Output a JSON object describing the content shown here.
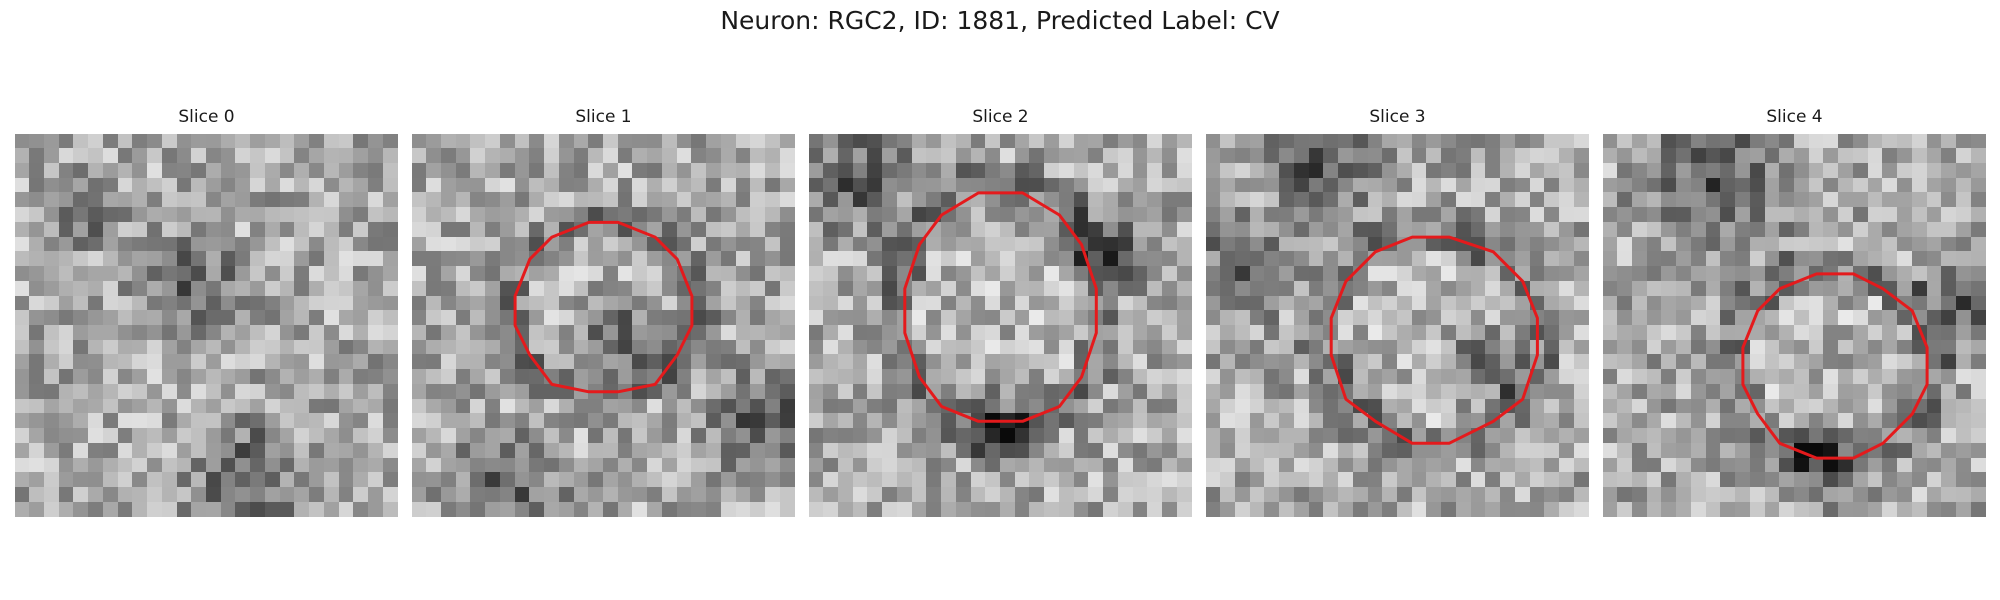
{
  "figure": {
    "title": "Neuron: RGC2, ID: 1881, Predicted Label: CV"
  },
  "contour_color": "#e41a1c",
  "slices": [
    {
      "label": "Slice 0",
      "seed": 11,
      "has_contour": false,
      "center": [
        0.5,
        0.5
      ],
      "radius": [
        0.0,
        0.0
      ],
      "dark_regions": [
        [
          0.2,
          0.2,
          0.12
        ],
        [
          0.6,
          0.9,
          0.22
        ],
        [
          0.45,
          0.4,
          0.2
        ]
      ]
    },
    {
      "label": "Slice 1",
      "seed": 23,
      "has_contour": true,
      "center": [
        0.5,
        0.46
      ],
      "radius": [
        0.24,
        0.225
      ],
      "dark_regions": [
        [
          0.25,
          0.92,
          0.2
        ],
        [
          0.92,
          0.75,
          0.2
        ],
        [
          0.55,
          0.55,
          0.18
        ]
      ]
    },
    {
      "label": "Slice 2",
      "seed": 37,
      "has_contour": true,
      "center": [
        0.5,
        0.46
      ],
      "radius": [
        0.26,
        0.305
      ],
      "dark_regions": [
        [
          0.12,
          0.12,
          0.2
        ],
        [
          0.78,
          0.3,
          0.16
        ],
        [
          0.5,
          0.75,
          0.14
        ]
      ]
    },
    {
      "label": "Slice 3",
      "seed": 49,
      "has_contour": true,
      "center": [
        0.59,
        0.53
      ],
      "radius": [
        0.275,
        0.275
      ],
      "dark_regions": [
        [
          0.1,
          0.35,
          0.18
        ],
        [
          0.72,
          0.6,
          0.14
        ],
        [
          0.3,
          0.1,
          0.2
        ]
      ]
    },
    {
      "label": "Slice 4",
      "seed": 61,
      "has_contour": true,
      "center": [
        0.6,
        0.6
      ],
      "radius": [
        0.245,
        0.245
      ],
      "dark_regions": [
        [
          0.3,
          0.12,
          0.28
        ],
        [
          0.95,
          0.45,
          0.18
        ],
        [
          0.55,
          0.85,
          0.16
        ]
      ]
    }
  ]
}
